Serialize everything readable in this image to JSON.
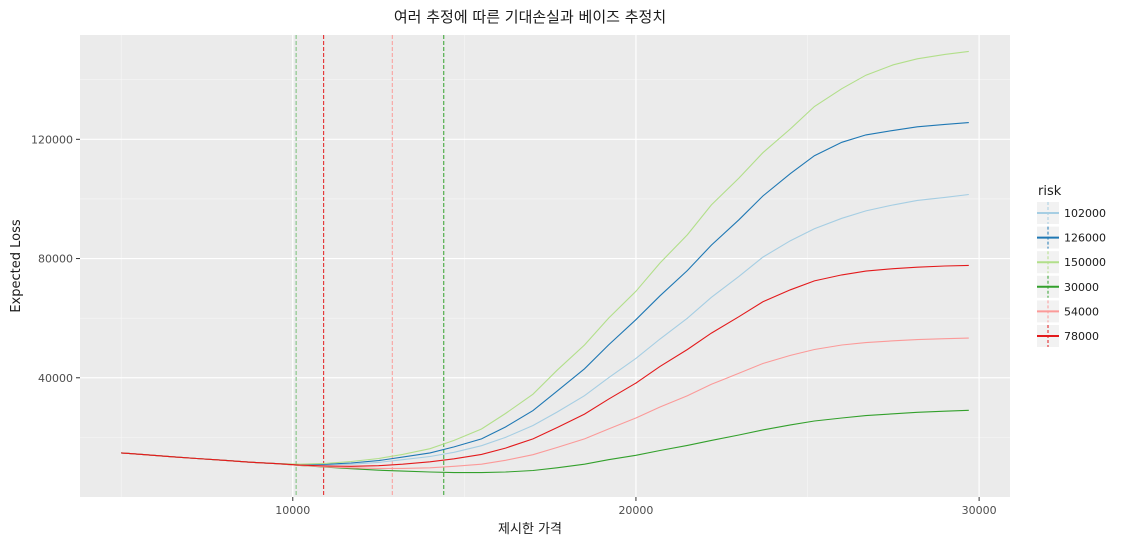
{
  "chart_data": {
    "type": "line",
    "title": "여러 추정에 따른 기대손실과 베이즈 추정치",
    "xlabel": "제시한 가격",
    "ylabel": "Expected Loss",
    "xlim": [
      3800,
      30900
    ],
    "ylim": [
      0,
      155000
    ],
    "x_ticks": [
      10000,
      20000,
      30000
    ],
    "x_tick_labels": [
      "10000",
      "20000",
      "30000"
    ],
    "y_ticks": [
      40000,
      80000,
      120000
    ],
    "y_tick_labels": [
      "40000",
      "80000",
      "120000"
    ],
    "grid": true,
    "legend": {
      "title": "risk",
      "position": "right"
    },
    "x": [
      5000,
      5700,
      6500,
      7200,
      8000,
      8700,
      9500,
      10200,
      11000,
      11700,
      12500,
      13200,
      14000,
      14700,
      15500,
      16200,
      17000,
      17700,
      18500,
      19200,
      20000,
      20700,
      21500,
      22200,
      23000,
      23700,
      24500,
      25200,
      26000,
      26700,
      27500,
      28200,
      29000,
      29700
    ],
    "series": [
      {
        "name": "102000",
        "color": "#a6cee3",
        "bayes_estimate": 10100,
        "values": [
          14800,
          14200,
          13500,
          12900,
          12300,
          11700,
          11200,
          10900,
          10800,
          11000,
          11600,
          12500,
          13600,
          15000,
          17200,
          20000,
          24000,
          28500,
          34000,
          40000,
          46500,
          53000,
          60000,
          67000,
          74000,
          80500,
          86000,
          90000,
          93500,
          96000,
          98000,
          99500,
          100500,
          101500
        ]
      },
      {
        "name": "126000",
        "color": "#1f78b4",
        "bayes_estimate": 10100,
        "values": [
          14800,
          14200,
          13500,
          12900,
          12300,
          11700,
          11200,
          10900,
          11000,
          11400,
          12200,
          13400,
          14800,
          16800,
          19500,
          23500,
          29000,
          35500,
          43000,
          51000,
          59500,
          67500,
          76000,
          84500,
          93000,
          101000,
          108500,
          114500,
          119000,
          121500,
          123000,
          124200,
          125000,
          125600
        ]
      },
      {
        "name": "150000",
        "color": "#b2df8a",
        "bayes_estimate": 10100,
        "values": [
          14800,
          14200,
          13500,
          12900,
          12300,
          11700,
          11200,
          11000,
          11300,
          11900,
          12900,
          14300,
          16200,
          19000,
          22800,
          28000,
          34500,
          42500,
          51000,
          60000,
          69000,
          78500,
          88000,
          98000,
          107000,
          115500,
          123500,
          131000,
          137000,
          141500,
          145000,
          147000,
          148500,
          149500
        ]
      },
      {
        "name": "30000",
        "color": "#33a02c",
        "bayes_estimate": 14400,
        "values": [
          14800,
          14200,
          13500,
          12900,
          12300,
          11700,
          11200,
          10600,
          10000,
          9500,
          9000,
          8700,
          8400,
          8200,
          8200,
          8400,
          8900,
          9800,
          11000,
          12500,
          14000,
          15600,
          17300,
          19000,
          20800,
          22500,
          24200,
          25500,
          26500,
          27300,
          27900,
          28400,
          28800,
          29100
        ]
      },
      {
        "name": "54000",
        "color": "#fb9a99",
        "bayes_estimate": 12900,
        "values": [
          14800,
          14200,
          13500,
          12900,
          12300,
          11700,
          11200,
          10600,
          10100,
          9800,
          9600,
          9600,
          9800,
          10300,
          11000,
          12300,
          14200,
          16600,
          19500,
          22800,
          26500,
          30200,
          34000,
          37800,
          41500,
          44800,
          47500,
          49500,
          51000,
          51800,
          52400,
          52800,
          53100,
          53300
        ]
      },
      {
        "name": "78000",
        "color": "#e31a1c",
        "bayes_estimate": 10900,
        "values": [
          14800,
          14200,
          13500,
          12900,
          12300,
          11700,
          11200,
          10700,
          10400,
          10300,
          10500,
          11000,
          11800,
          12800,
          14300,
          16400,
          19500,
          23300,
          27800,
          32800,
          38200,
          43800,
          49500,
          55000,
          60500,
          65500,
          69500,
          72500,
          74500,
          75800,
          76600,
          77100,
          77500,
          77700
        ]
      }
    ]
  }
}
